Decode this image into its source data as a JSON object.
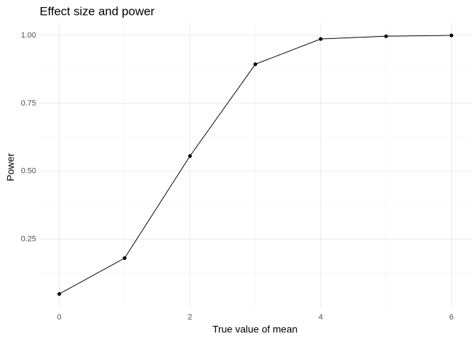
{
  "chart_data": {
    "type": "line",
    "title": "Effect size and power",
    "x_label": "True value of mean",
    "y_label": "Power",
    "x": [
      0,
      1,
      2,
      3,
      4,
      5,
      6
    ],
    "series": [
      {
        "color": "#000000",
        "values": [
          0.048,
          0.18,
          0.556,
          0.894,
          0.987,
          0.997,
          1.0
        ]
      }
    ],
    "xlim": [
      -0.3,
      6.3
    ],
    "xticks": [
      0,
      2,
      4,
      6
    ],
    "ylim": [
      0.001,
      1.047
    ],
    "yticks": [
      0.25,
      {
        "value": 0.5,
        "label": "0.50"
      },
      0.75,
      {
        "value": 1,
        "label": "1.00"
      }
    ],
    "grid": true
  }
}
